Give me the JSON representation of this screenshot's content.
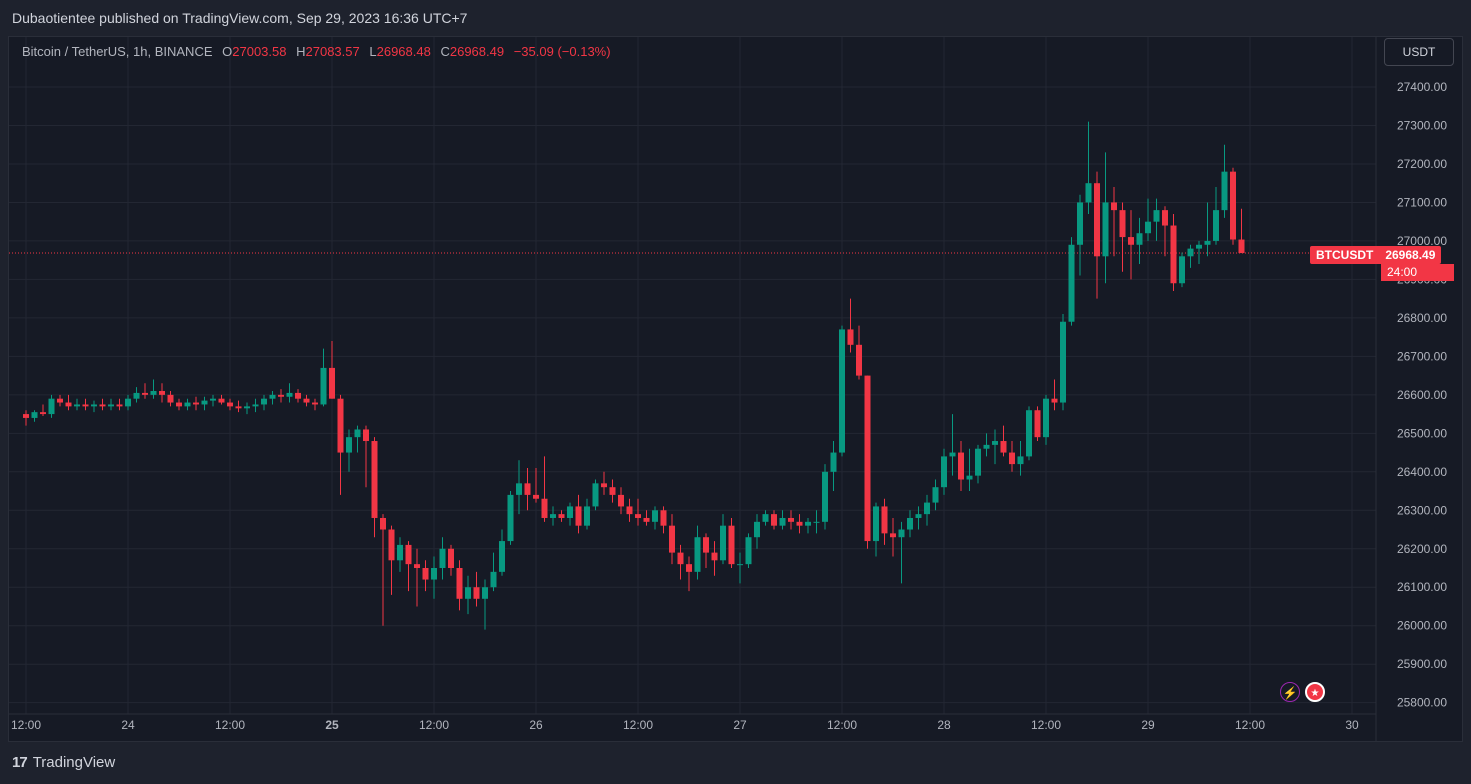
{
  "header": {
    "published_line": "Dubaotientee published on TradingView.com, Sep 29, 2023 16:36 UTC+7"
  },
  "legend": {
    "symbol": "Bitcoin / TetherUS, 1h, BINANCE",
    "o_label": "O",
    "o_value": "27003.58",
    "h_label": "H",
    "h_value": "27083.57",
    "l_label": "L",
    "l_value": "26968.48",
    "c_label": "C",
    "c_value": "26968.49",
    "change": "−35.09 (−0.13%)"
  },
  "currency_button": "USDT",
  "price_tag": {
    "symbol": "BTCUSDT",
    "value": "26968.49",
    "countdown": "24:00"
  },
  "footer": {
    "brand": "TradingView",
    "logo": "17"
  },
  "colors": {
    "up": "#089981",
    "down": "#f23645",
    "background": "#161a25",
    "grid": "#232733"
  },
  "chart_data": {
    "type": "candlestick",
    "title": "Bitcoin / TetherUS, 1h, BINANCE",
    "ylim": [
      25780,
      27480
    ],
    "y_ticks": [
      27400,
      27300,
      27200,
      27100,
      27000,
      26900,
      26800,
      26700,
      26600,
      26500,
      26400,
      26300,
      26200,
      26100,
      26000,
      25900,
      25800
    ],
    "y_tick_labels": [
      "27400.00",
      "27300.00",
      "27200.00",
      "27100.00",
      "27000.00",
      "26900.00",
      "26800.00",
      "26700.00",
      "26600.00",
      "26500.00",
      "26400.00",
      "26300.00",
      "26200.00",
      "26100.00",
      "26000.00",
      "25900.00",
      "25800.00"
    ],
    "x_tick_labels": [
      "12:00",
      "24",
      "12:00",
      "25",
      "12:00",
      "26",
      "12:00",
      "27",
      "12:00",
      "28",
      "12:00",
      "29",
      "12:00",
      "30"
    ],
    "x_tick_index": [
      0,
      12,
      24,
      36,
      48,
      60,
      72,
      84,
      96,
      108,
      120,
      132,
      144,
      156
    ],
    "bold_x_labels": [
      "25"
    ],
    "first_candle_time": "Sep 23 12:00",
    "interval": "1h",
    "last_price": 26968.49,
    "grid": true,
    "candles": [
      [
        26550,
        26560,
        26520,
        26540
      ],
      [
        26540,
        26560,
        26530,
        26555
      ],
      [
        26555,
        26575,
        26545,
        26550
      ],
      [
        26550,
        26600,
        26540,
        26590
      ],
      [
        26590,
        26600,
        26570,
        26580
      ],
      [
        26580,
        26600,
        26560,
        26570
      ],
      [
        26570,
        26590,
        26560,
        26575
      ],
      [
        26575,
        26590,
        26560,
        26570
      ],
      [
        26570,
        26585,
        26555,
        26575
      ],
      [
        26575,
        26590,
        26560,
        26570
      ],
      [
        26570,
        26590,
        26560,
        26575
      ],
      [
        26575,
        26590,
        26560,
        26570
      ],
      [
        26570,
        26600,
        26560,
        26590
      ],
      [
        26590,
        26620,
        26580,
        26605
      ],
      [
        26605,
        26630,
        26590,
        26600
      ],
      [
        26600,
        26640,
        26590,
        26610
      ],
      [
        26610,
        26630,
        26580,
        26600
      ],
      [
        26600,
        26610,
        26570,
        26580
      ],
      [
        26580,
        26590,
        26560,
        26570
      ],
      [
        26570,
        26590,
        26560,
        26580
      ],
      [
        26580,
        26595,
        26560,
        26575
      ],
      [
        26575,
        26595,
        26560,
        26585
      ],
      [
        26585,
        26600,
        26570,
        26590
      ],
      [
        26590,
        26600,
        26575,
        26580
      ],
      [
        26580,
        26590,
        26560,
        26570
      ],
      [
        26570,
        26585,
        26555,
        26565
      ],
      [
        26565,
        26580,
        26550,
        26570
      ],
      [
        26570,
        26590,
        26555,
        26575
      ],
      [
        26575,
        26600,
        26560,
        26590
      ],
      [
        26590,
        26610,
        26575,
        26600
      ],
      [
        26600,
        26615,
        26580,
        26595
      ],
      [
        26595,
        26630,
        26580,
        26605
      ],
      [
        26605,
        26615,
        26580,
        26590
      ],
      [
        26590,
        26600,
        26570,
        26580
      ],
      [
        26580,
        26590,
        26560,
        26575
      ],
      [
        26575,
        26720,
        26570,
        26670
      ],
      [
        26670,
        26740,
        26590,
        26590
      ],
      [
        26590,
        26600,
        26340,
        26450
      ],
      [
        26450,
        26510,
        26400,
        26490
      ],
      [
        26490,
        26520,
        26450,
        26510
      ],
      [
        26510,
        26520,
        26360,
        26480
      ],
      [
        26480,
        26490,
        26230,
        26280
      ],
      [
        26280,
        26290,
        26000,
        26250
      ],
      [
        26250,
        26260,
        26080,
        26170
      ],
      [
        26170,
        26230,
        26140,
        26210
      ],
      [
        26210,
        26220,
        26090,
        26160
      ],
      [
        26160,
        26200,
        26050,
        26150
      ],
      [
        26150,
        26170,
        26090,
        26120
      ],
      [
        26120,
        26180,
        26070,
        26150
      ],
      [
        26150,
        26230,
        26120,
        26200
      ],
      [
        26200,
        26210,
        26130,
        26150
      ],
      [
        26150,
        26170,
        26040,
        26070
      ],
      [
        26070,
        26130,
        26030,
        26100
      ],
      [
        26100,
        26140,
        26050,
        26070
      ],
      [
        26070,
        26120,
        25990,
        26100
      ],
      [
        26100,
        26190,
        26090,
        26140
      ],
      [
        26140,
        26250,
        26130,
        26220
      ],
      [
        26220,
        26350,
        26210,
        26340
      ],
      [
        26340,
        26430,
        26290,
        26370
      ],
      [
        26370,
        26410,
        26300,
        26340
      ],
      [
        26340,
        26410,
        26320,
        26330
      ],
      [
        26330,
        26440,
        26270,
        26280
      ],
      [
        26280,
        26310,
        26260,
        26290
      ],
      [
        26290,
        26300,
        26270,
        26280
      ],
      [
        26280,
        26320,
        26260,
        26310
      ],
      [
        26310,
        26340,
        26240,
        26260
      ],
      [
        26260,
        26330,
        26250,
        26310
      ],
      [
        26310,
        26380,
        26300,
        26370
      ],
      [
        26370,
        26400,
        26340,
        26360
      ],
      [
        26360,
        26380,
        26320,
        26340
      ],
      [
        26340,
        26360,
        26290,
        26310
      ],
      [
        26310,
        26330,
        26270,
        26290
      ],
      [
        26290,
        26330,
        26260,
        26280
      ],
      [
        26280,
        26300,
        26260,
        26270
      ],
      [
        26270,
        26310,
        26250,
        26300
      ],
      [
        26300,
        26310,
        26240,
        26260
      ],
      [
        26260,
        26290,
        26160,
        26190
      ],
      [
        26190,
        26210,
        26120,
        26160
      ],
      [
        26160,
        26180,
        26090,
        26140
      ],
      [
        26140,
        26260,
        26120,
        26230
      ],
      [
        26230,
        26240,
        26150,
        26190
      ],
      [
        26190,
        26220,
        26130,
        26170
      ],
      [
        26170,
        26290,
        26160,
        26260
      ],
      [
        26260,
        26280,
        26150,
        26160
      ],
      [
        26160,
        26190,
        26110,
        26160
      ],
      [
        26160,
        26240,
        26150,
        26230
      ],
      [
        26230,
        26290,
        26200,
        26270
      ],
      [
        26270,
        26300,
        26260,
        26290
      ],
      [
        26290,
        26300,
        26250,
        26260
      ],
      [
        26260,
        26300,
        26250,
        26280
      ],
      [
        26280,
        26300,
        26250,
        26270
      ],
      [
        26270,
        26290,
        26240,
        26260
      ],
      [
        26260,
        26280,
        26240,
        26270
      ],
      [
        26270,
        26300,
        26240,
        26270
      ],
      [
        26270,
        26420,
        26250,
        26400
      ],
      [
        26400,
        26480,
        26350,
        26450
      ],
      [
        26450,
        26780,
        26440,
        26770
      ],
      [
        26770,
        26850,
        26710,
        26730
      ],
      [
        26730,
        26780,
        26640,
        26650
      ],
      [
        26650,
        26650,
        26200,
        26220
      ],
      [
        26220,
        26320,
        26180,
        26310
      ],
      [
        26310,
        26330,
        26210,
        26240
      ],
      [
        26240,
        26280,
        26180,
        26230
      ],
      [
        26230,
        26270,
        26110,
        26250
      ],
      [
        26250,
        26300,
        26230,
        26280
      ],
      [
        26280,
        26310,
        26250,
        26290
      ],
      [
        26290,
        26340,
        26260,
        26320
      ],
      [
        26320,
        26380,
        26300,
        26360
      ],
      [
        26360,
        26460,
        26340,
        26440
      ],
      [
        26440,
        26550,
        26390,
        26450
      ],
      [
        26450,
        26480,
        26350,
        26380
      ],
      [
        26380,
        26460,
        26350,
        26390
      ],
      [
        26390,
        26470,
        26370,
        26460
      ],
      [
        26460,
        26500,
        26440,
        26470
      ],
      [
        26470,
        26510,
        26420,
        26480
      ],
      [
        26480,
        26520,
        26440,
        26450
      ],
      [
        26450,
        26480,
        26400,
        26420
      ],
      [
        26420,
        26480,
        26390,
        26440
      ],
      [
        26440,
        26570,
        26430,
        26560
      ],
      [
        26560,
        26570,
        26480,
        26490
      ],
      [
        26490,
        26600,
        26470,
        26590
      ],
      [
        26590,
        26640,
        26560,
        26580
      ],
      [
        26580,
        26810,
        26560,
        26790
      ],
      [
        26790,
        27010,
        26780,
        26990
      ],
      [
        26990,
        27120,
        26910,
        27100
      ],
      [
        27100,
        27310,
        27070,
        27150
      ],
      [
        27150,
        27180,
        26850,
        26960
      ],
      [
        26960,
        27230,
        26890,
        27100
      ],
      [
        27100,
        27140,
        26960,
        27080
      ],
      [
        27080,
        27100,
        26920,
        27010
      ],
      [
        27010,
        27080,
        26900,
        26990
      ],
      [
        26990,
        27060,
        26940,
        27020
      ],
      [
        27020,
        27110,
        27000,
        27050
      ],
      [
        27050,
        27110,
        27000,
        27080
      ],
      [
        27080,
        27090,
        26960,
        27040
      ],
      [
        27040,
        27070,
        26870,
        26890
      ],
      [
        26890,
        26970,
        26880,
        26960
      ],
      [
        26960,
        26990,
        26930,
        26980
      ],
      [
        26980,
        27000,
        26940,
        26990
      ],
      [
        26990,
        27100,
        26960,
        27000
      ],
      [
        27000,
        27140,
        26990,
        27080
      ],
      [
        27080,
        27250,
        27060,
        27180
      ],
      [
        27180,
        27190,
        26990,
        27003.58
      ],
      [
        27003.58,
        27083.57,
        26968.48,
        26968.49
      ]
    ]
  }
}
